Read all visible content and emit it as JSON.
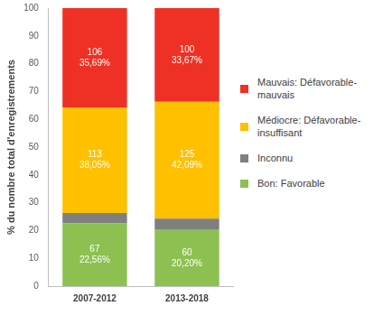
{
  "chart_data": {
    "type": "bar",
    "y_label": "% du nombre total d'enregistrements",
    "categories": [
      "2007-2012",
      "2013-2018"
    ],
    "series": [
      {
        "name": "Bon: Favorable",
        "color": "#8cc152",
        "values": [
          22.56,
          20.2
        ],
        "counts": [
          67,
          60
        ],
        "value_labels": [
          "22,56%",
          "20,20%"
        ]
      },
      {
        "name": "Inconnu",
        "color": "#7f7f7f",
        "values": [
          3.7,
          4.04
        ],
        "data_labels": false
      },
      {
        "name": "Médiocre: Défavorable-insuffisant",
        "color": "#ffc000",
        "values": [
          38.05,
          42.09
        ],
        "counts": [
          113,
          125
        ],
        "value_labels": [
          "38,05%",
          "42,09%"
        ]
      },
      {
        "name": "Mauvais: Défavorable-mauvais",
        "color": "#ee3124",
        "values": [
          35.69,
          33.67
        ],
        "counts": [
          106,
          100
        ],
        "value_labels": [
          "35,69%",
          "33,67%"
        ]
      }
    ],
    "stacked": true,
    "data_labels": true,
    "ylim": [
      0,
      100
    ],
    "yticks": [
      0,
      10,
      20,
      30,
      40,
      50,
      60,
      70,
      80,
      90,
      100
    ],
    "grid": false,
    "legend": "right"
  }
}
